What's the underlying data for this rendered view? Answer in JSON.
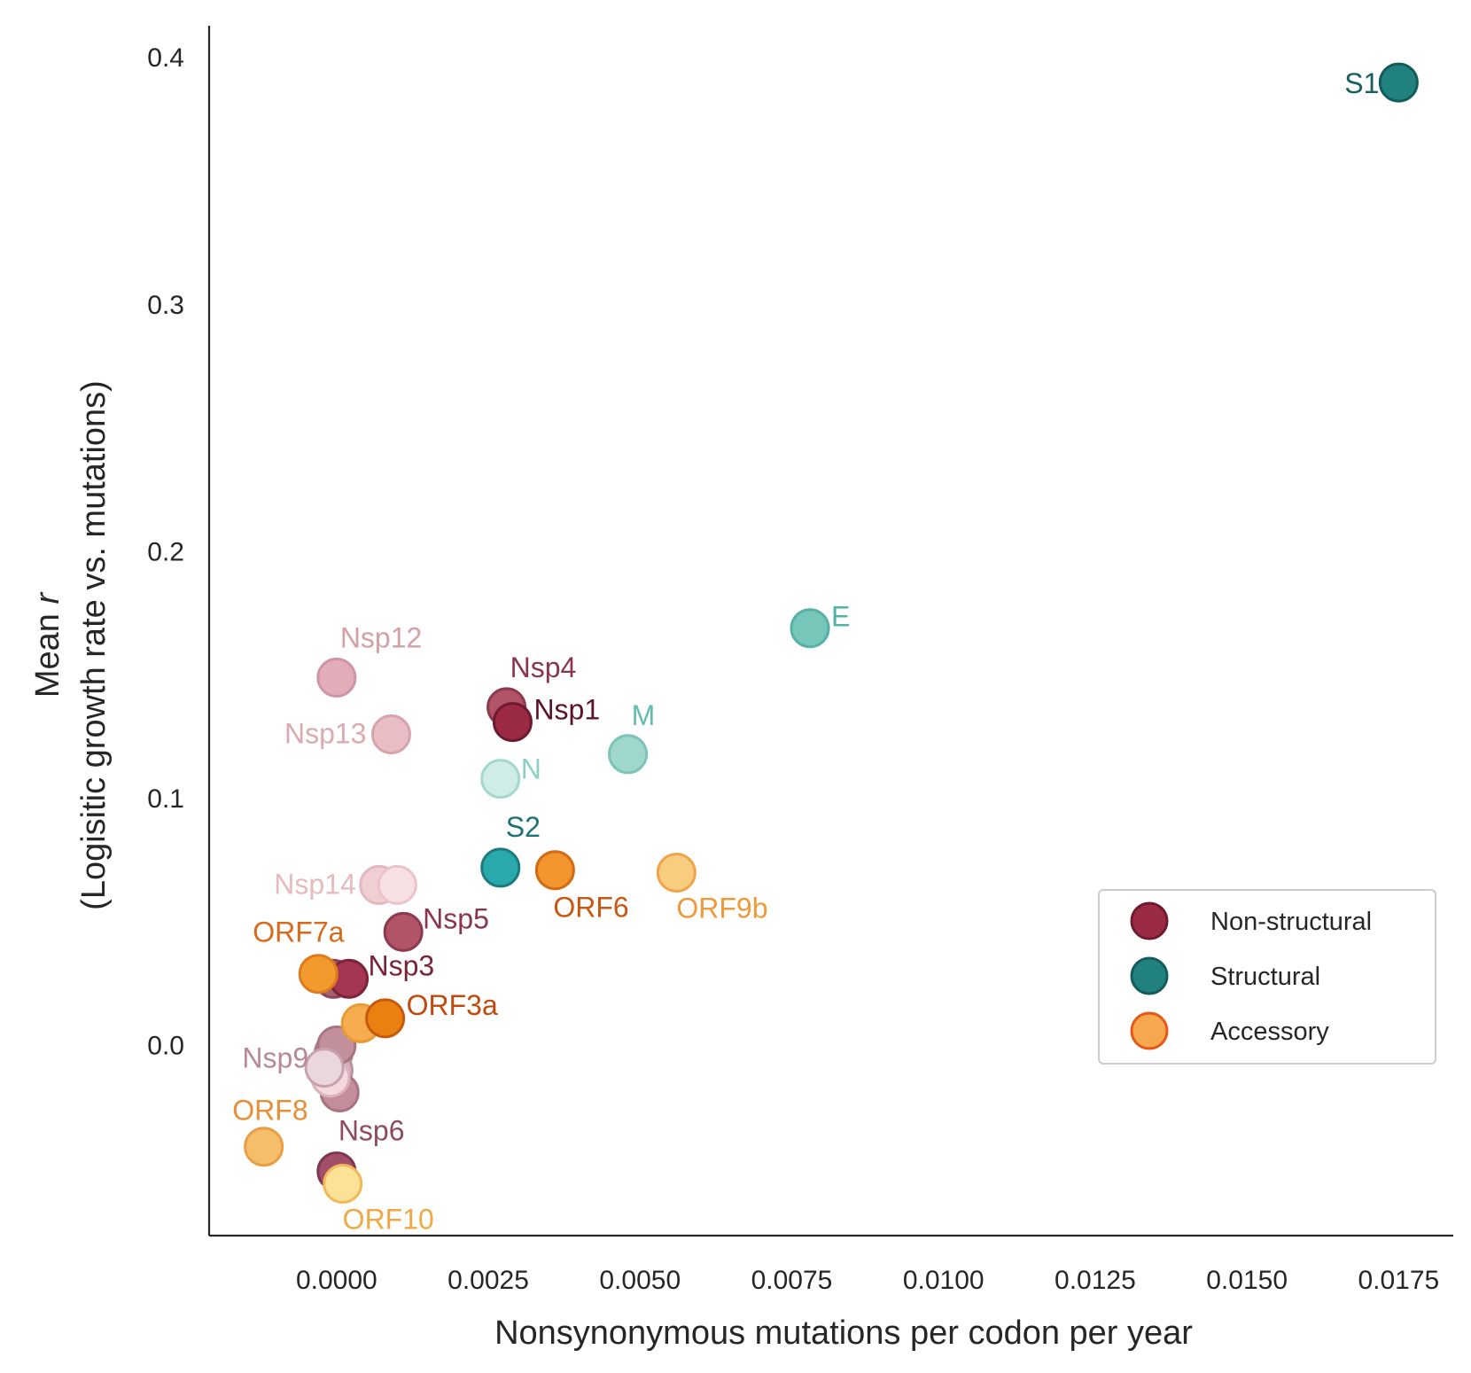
{
  "chart_data": {
    "type": "scatter",
    "xlabel": "Nonsynonymous mutations per codon per year",
    "ylabel_line1_prefix": "Mean ",
    "ylabel_line1_var": "r",
    "ylabel_line2": "(Logisitic growth rate vs. mutations)",
    "xlim": [
      -0.0021,
      0.0184
    ],
    "ylim": [
      -0.077,
      0.413
    ],
    "xticks": [
      0.0,
      0.0025,
      0.005,
      0.0075,
      0.01,
      0.0125,
      0.015,
      0.0175
    ],
    "xtick_labels": [
      "0.0000",
      "0.0025",
      "0.0050",
      "0.0075",
      "0.0100",
      "0.0125",
      "0.0150",
      "0.0175"
    ],
    "yticks": [
      0.0,
      0.1,
      0.2,
      0.3,
      0.4
    ],
    "ytick_labels": [
      "0.0",
      "0.1",
      "0.2",
      "0.3",
      "0.4"
    ],
    "grid": false,
    "legend_position": "lower-right",
    "legend": [
      {
        "label": "Non-structural",
        "fill": "#9b2a45",
        "stroke": "#6e1a30"
      },
      {
        "label": "Structural",
        "fill": "#20817f",
        "stroke": "#135c5b"
      },
      {
        "label": "Accessory",
        "fill": "#f5a84e",
        "stroke": "#e8571a"
      }
    ],
    "points": [
      {
        "name": "",
        "x": -5e-05,
        "y": 0.027,
        "fill": "#a7606f",
        "stroke": "#8a4658"
      },
      {
        "name": "",
        "x": -5e-05,
        "y": -0.003,
        "fill": "#c99aa8",
        "stroke": "#b07d8d"
      },
      {
        "name": "",
        "x": -5e-05,
        "y": -0.01,
        "fill": "#d5afba",
        "stroke": "#bb919e"
      },
      {
        "name": "",
        "x": 5e-05,
        "y": -0.019,
        "fill": "#c48d9c",
        "stroke": "#a97282"
      },
      {
        "name": "",
        "x": -0.0001,
        "y": -0.013,
        "fill": "#f3d9de",
        "stroke": "#dbb3bd"
      },
      {
        "name": "",
        "x": 0.0,
        "y": 0.0,
        "fill": "#c28f9c",
        "stroke": "#a87483"
      },
      {
        "name": "",
        "x": 0.0004,
        "y": 0.009,
        "fill": "#f5ad4f",
        "stroke": "#e89a33"
      },
      {
        "name": "S1",
        "x": 0.0175,
        "y": 0.39,
        "fill": "#20817f",
        "stroke": "#135c5b",
        "label_color": "#17605e",
        "label_anchor": "end",
        "label_dx": -22,
        "label_dy": 12
      },
      {
        "name": "E",
        "x": 0.0078,
        "y": 0.169,
        "fill": "#76c6ba",
        "stroke": "#57b2a5",
        "label_color": "#4fb4a6",
        "label_anchor": "start",
        "label_dx": 24,
        "label_dy": -2
      },
      {
        "name": "M",
        "x": 0.0048,
        "y": 0.118,
        "fill": "#9fd7ce",
        "stroke": "#7cc3b8",
        "label_color": "#61bdb0",
        "label_anchor": "start",
        "label_dx": 4,
        "label_dy": -33
      },
      {
        "name": "N",
        "x": 0.0027,
        "y": 0.108,
        "fill": "#d0ece7",
        "stroke": "#a3d8ce",
        "label_color": "#8ed0c4",
        "label_anchor": "start",
        "label_dx": 23,
        "label_dy": 0
      },
      {
        "name": "S2",
        "x": 0.0027,
        "y": 0.072,
        "fill": "#2aa9ad",
        "stroke": "#1d7b7e",
        "label_color": "#1e7274",
        "label_anchor": "start",
        "label_dx": 6,
        "label_dy": -35
      },
      {
        "name": "Nsp4",
        "x": 0.0028,
        "y": 0.137,
        "fill": "#b15467",
        "stroke": "#8c3a4e",
        "label_color": "#8a3550",
        "label_anchor": "start",
        "label_dx": 4,
        "label_dy": -34
      },
      {
        "name": "Nsp1",
        "x": 0.0029,
        "y": 0.131,
        "fill": "#9b2a45",
        "stroke": "#6e1a30",
        "label_color": "#5c1228",
        "label_anchor": "start",
        "label_dx": 24,
        "label_dy": -3
      },
      {
        "name": "Nsp12",
        "x": 0.0,
        "y": 0.149,
        "fill": "#e2adb8",
        "stroke": "#cf95a2",
        "label_color": "#d3a0a6",
        "label_anchor": "start",
        "label_dx": 4,
        "label_dy": -34
      },
      {
        "name": "Nsp13",
        "x": 0.0009,
        "y": 0.126,
        "fill": "#e9bdc4",
        "stroke": "#d8a3ac",
        "label_color": "#d9abb0",
        "label_anchor": "end",
        "label_dx": -28,
        "label_dy": 10
      },
      {
        "name": "Nsp14",
        "x": 0.0007,
        "y": 0.065,
        "fill": "#f0cfd3",
        "stroke": "#e2b7bd",
        "label_color": "#e6bbbf",
        "label_anchor": "end",
        "label_dx": -26,
        "label_dy": 10
      },
      {
        "name": "",
        "x": 0.001,
        "y": 0.065,
        "fill": "#f7e0e3",
        "stroke": "#ebc3c9"
      },
      {
        "name": "Nsp5",
        "x": 0.0011,
        "y": 0.046,
        "fill": "#b15467",
        "stroke": "#8c3a4e",
        "label_color": "#8a3550",
        "label_anchor": "start",
        "label_dx": 22,
        "label_dy": -4
      },
      {
        "name": "Nsp3",
        "x": 0.0002,
        "y": 0.027,
        "fill": "#a43652",
        "stroke": "#7a2339",
        "label_color": "#7a2339",
        "label_anchor": "start",
        "label_dx": 22,
        "label_dy": -4
      },
      {
        "name": "Nsp9",
        "x": -0.0002,
        "y": -0.009,
        "fill": "#ead7dd",
        "stroke": "#c7a2ad",
        "label_color": "#b88896",
        "label_anchor": "end",
        "label_dx": -18,
        "label_dy": 0
      },
      {
        "name": "Nsp6",
        "x": 0.0,
        "y": -0.051,
        "fill": "#a25069",
        "stroke": "#80364e",
        "label_color": "#8e4a60",
        "label_anchor": "start",
        "label_dx": 2,
        "label_dy": -35
      },
      {
        "name": "ORF7a",
        "x": -0.0003,
        "y": 0.029,
        "fill": "#f39a2e",
        "stroke": "#e07b1d",
        "label_color": "#d86a1d",
        "label_anchor": "start",
        "label_dx": -74,
        "label_dy": -36
      },
      {
        "name": "ORF3a",
        "x": 0.0008,
        "y": 0.011,
        "fill": "#ea8010",
        "stroke": "#c55a0c",
        "label_color": "#c04a0d",
        "label_anchor": "start",
        "label_dx": 24,
        "label_dy": -4
      },
      {
        "name": "ORF6",
        "x": 0.0036,
        "y": 0.071,
        "fill": "#f1952c",
        "stroke": "#d26a16",
        "label_color": "#c95612",
        "label_anchor": "start",
        "label_dx": -2,
        "label_dy": 53
      },
      {
        "name": "ORF9b",
        "x": 0.0056,
        "y": 0.07,
        "fill": "#f8cd80",
        "stroke": "#eea44a",
        "label_color": "#ef9a3a",
        "label_anchor": "start",
        "label_dx": 0,
        "label_dy": 51
      },
      {
        "name": "ORF8",
        "x": -0.0012,
        "y": -0.041,
        "fill": "#f5be6a",
        "stroke": "#e99e45",
        "label_color": "#e88f35",
        "label_anchor": "end",
        "label_dx": 50,
        "label_dy": -30
      },
      {
        "name": "ORF10",
        "x": 0.0001,
        "y": -0.056,
        "fill": "#fbe296",
        "stroke": "#f2b858",
        "label_color": "#f0a844",
        "label_anchor": "start",
        "label_dx": 0,
        "label_dy": 51
      }
    ]
  }
}
